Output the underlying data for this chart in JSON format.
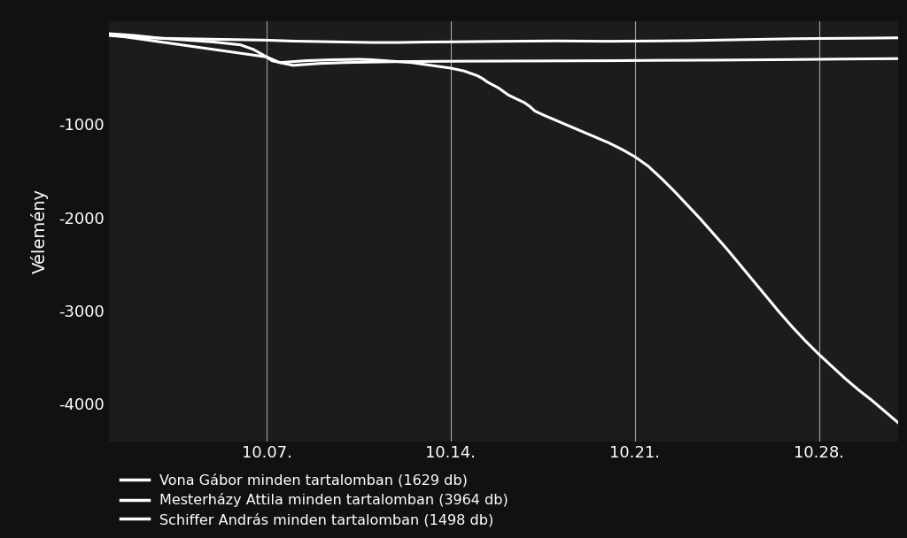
{
  "background_color": "#111111",
  "plot_bg_color": "#1c1c1c",
  "text_color": "#ffffff",
  "ylabel": "Vélemény",
  "xtick_labels": [
    "10.07.",
    "10.14.",
    "10.21.",
    "10.28."
  ],
  "xtick_positions": [
    6,
    13,
    20,
    27
  ],
  "vline_positions": [
    6,
    13,
    20,
    27
  ],
  "yticks": [
    -1000,
    -2000,
    -3000,
    -4000
  ],
  "ylim": [
    -4400,
    100
  ],
  "xlim": [
    0,
    30
  ],
  "legend_labels": [
    "Vona Gábor minden tartalomban (1629 db)",
    "Mesterházy Attila minden tartalomban (3964 db)",
    "Schiffer András minden tartalomban (1498 db)"
  ],
  "line_color": "#ffffff",
  "line_width": 2.2,
  "series": {
    "vona": {
      "x": [
        0,
        0.5,
        1,
        2,
        3,
        4,
        5,
        6,
        6.5,
        7,
        8,
        9,
        10,
        11,
        12,
        13,
        14,
        15,
        16,
        17,
        18,
        19,
        20,
        21,
        22,
        23,
        24,
        25,
        26,
        27,
        28,
        29,
        30
      ],
      "y": [
        -50,
        -60,
        -70,
        -80,
        -85,
        -90,
        -95,
        -100,
        -105,
        -110,
        -115,
        -120,
        -125,
        -125,
        -120,
        -118,
        -115,
        -112,
        -110,
        -108,
        -110,
        -112,
        -110,
        -108,
        -105,
        -100,
        -95,
        -90,
        -85,
        -82,
        -80,
        -78,
        -75
      ]
    },
    "mesterhazy": {
      "x": [
        0,
        0.5,
        1,
        2,
        3,
        4,
        5,
        5.5,
        6,
        6.2,
        6.5,
        7,
        7.5,
        8,
        8.5,
        9,
        9.5,
        10,
        10.5,
        11,
        11.5,
        12,
        12.5,
        13,
        13.5,
        14,
        14.2,
        14.4,
        14.6,
        14.8,
        15,
        15.2,
        15.5,
        15.8,
        16,
        16.2,
        16.5,
        17,
        17.5,
        18,
        18.5,
        19,
        19.5,
        20,
        20.5,
        21,
        21.5,
        22,
        22.5,
        23,
        23.5,
        24,
        24.5,
        25,
        25.5,
        26,
        26.5,
        27,
        27.5,
        28,
        28.5,
        29,
        29.5,
        30
      ],
      "y": [
        -30,
        -40,
        -50,
        -80,
        -100,
        -120,
        -150,
        -200,
        -280,
        -320,
        -340,
        -330,
        -320,
        -315,
        -310,
        -308,
        -305,
        -310,
        -320,
        -330,
        -340,
        -360,
        -380,
        -400,
        -430,
        -480,
        -510,
        -550,
        -580,
        -610,
        -650,
        -690,
        -730,
        -770,
        -810,
        -860,
        -900,
        -960,
        -1020,
        -1080,
        -1140,
        -1200,
        -1270,
        -1350,
        -1450,
        -1580,
        -1720,
        -1870,
        -2020,
        -2180,
        -2340,
        -2510,
        -2680,
        -2850,
        -3020,
        -3180,
        -3330,
        -3470,
        -3600,
        -3730,
        -3850,
        -3960,
        -4080,
        -4200
      ]
    },
    "schiffer": {
      "x": [
        0,
        0.5,
        1,
        2,
        3,
        4,
        5,
        6,
        6.5,
        7,
        7.5,
        8,
        9,
        10,
        11,
        12,
        13,
        14,
        15,
        16,
        17,
        18,
        19,
        20,
        21,
        22,
        23,
        24,
        25,
        26,
        27,
        28,
        29,
        30
      ],
      "y": [
        -40,
        -60,
        -80,
        -120,
        -160,
        -200,
        -240,
        -280,
        -340,
        -370,
        -360,
        -350,
        -340,
        -335,
        -330,
        -328,
        -326,
        -325,
        -324,
        -323,
        -322,
        -321,
        -320,
        -318,
        -316,
        -315,
        -314,
        -312,
        -310,
        -308,
        -305,
        -302,
        -300,
        -298
      ]
    }
  }
}
